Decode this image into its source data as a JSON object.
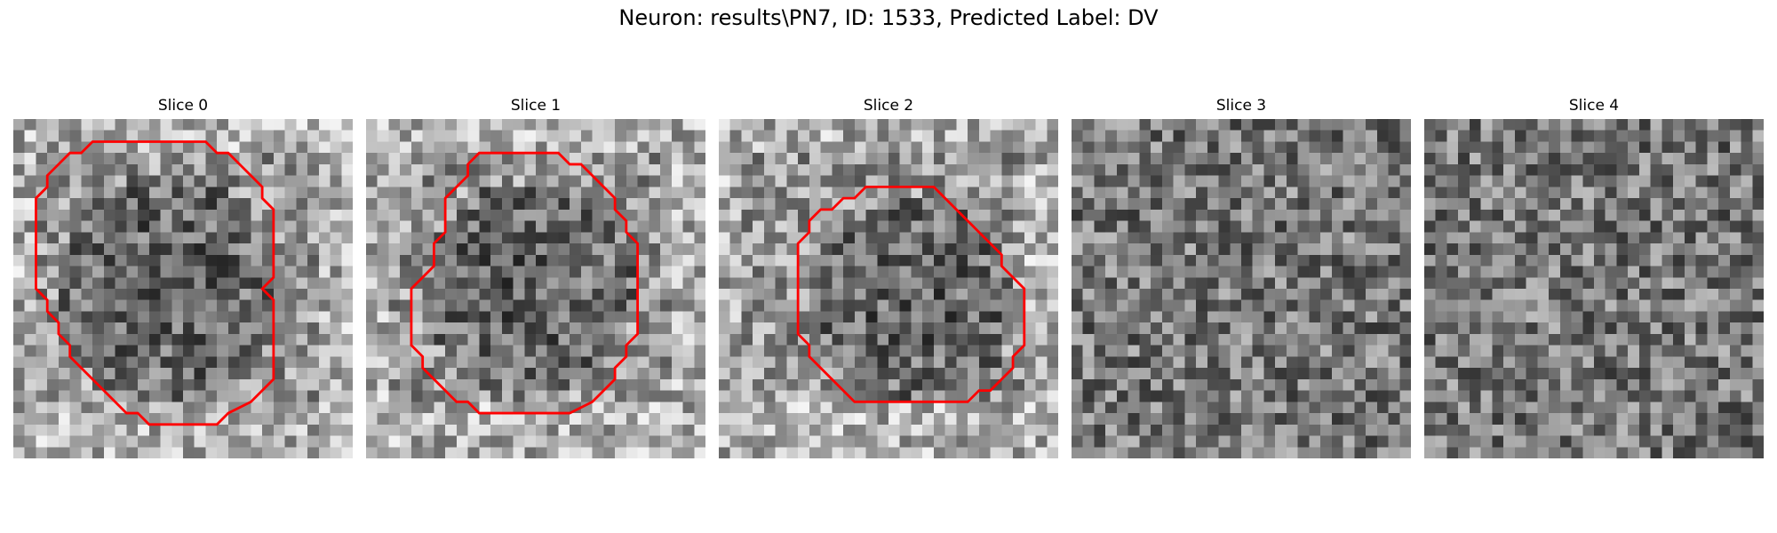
{
  "figure": {
    "title": "Neuron: results\\PN7, ID: 1533, Predicted Label: DV"
  },
  "panels": [
    {
      "title": "Slice 0",
      "has_contour": true
    },
    {
      "title": "Slice 1",
      "has_contour": true
    },
    {
      "title": "Slice 2",
      "has_contour": true
    },
    {
      "title": "Slice 3",
      "has_contour": false
    },
    {
      "title": "Slice 4",
      "has_contour": false
    }
  ],
  "colors": {
    "contour": "#ff0000",
    "background": "#ffffff"
  }
}
